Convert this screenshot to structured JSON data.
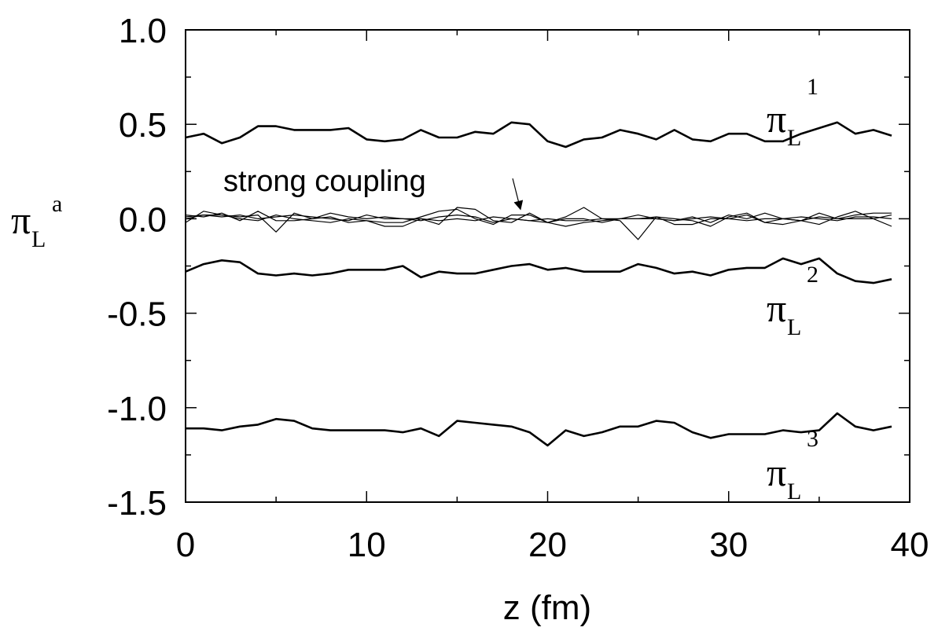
{
  "chart_data": {
    "type": "line",
    "xlabel": "z (fm)",
    "ylabel": {
      "symbol": "π",
      "subscript": "L",
      "superscript": "a"
    },
    "xlim": [
      0,
      40
    ],
    "ylim": [
      -1.5,
      1.0
    ],
    "x_ticks": [
      0,
      10,
      20,
      30,
      40
    ],
    "x_tick_labels": [
      "0",
      "10",
      "20",
      "30",
      "40"
    ],
    "y_ticks": [
      1.0,
      0.5,
      0.0,
      -0.5,
      -1.0,
      -1.5
    ],
    "y_tick_labels": [
      "1.0",
      "0.5",
      "0.0",
      "-0.5",
      "-1.0",
      "-1.5"
    ],
    "grid": false,
    "x": [
      0,
      1,
      2,
      3,
      4,
      5,
      6,
      7,
      8,
      9,
      10,
      11,
      12,
      13,
      14,
      15,
      16,
      17,
      18,
      19,
      20,
      21,
      22,
      23,
      24,
      25,
      26,
      27,
      28,
      29,
      30,
      31,
      32,
      33,
      34,
      35,
      36,
      37,
      38,
      39
    ],
    "series": [
      {
        "name": "π_L^1",
        "label": {
          "symbol": "π",
          "subscript": "L",
          "superscript": "1"
        },
        "style": "thick",
        "values": [
          0.43,
          0.45,
          0.4,
          0.43,
          0.49,
          0.49,
          0.47,
          0.47,
          0.47,
          0.48,
          0.42,
          0.41,
          0.42,
          0.47,
          0.43,
          0.43,
          0.46,
          0.45,
          0.51,
          0.5,
          0.41,
          0.38,
          0.42,
          0.43,
          0.47,
          0.45,
          0.42,
          0.47,
          0.42,
          0.41,
          0.45,
          0.45,
          0.41,
          0.41,
          0.45,
          0.48,
          0.51,
          0.45,
          0.47,
          0.44
        ]
      },
      {
        "name": "π_L^2",
        "label": {
          "symbol": "π",
          "subscript": "L",
          "superscript": "2"
        },
        "style": "thick",
        "values": [
          -0.28,
          -0.24,
          -0.22,
          -0.23,
          -0.29,
          -0.3,
          -0.29,
          -0.3,
          -0.29,
          -0.27,
          -0.27,
          -0.27,
          -0.25,
          -0.31,
          -0.28,
          -0.29,
          -0.29,
          -0.27,
          -0.25,
          -0.24,
          -0.27,
          -0.26,
          -0.28,
          -0.28,
          -0.28,
          -0.24,
          -0.26,
          -0.29,
          -0.28,
          -0.3,
          -0.27,
          -0.26,
          -0.26,
          -0.21,
          -0.24,
          -0.21,
          -0.29,
          -0.33,
          -0.34,
          -0.32
        ]
      },
      {
        "name": "π_L^3",
        "label": {
          "symbol": "π",
          "subscript": "L",
          "superscript": "3"
        },
        "style": "thick",
        "values": [
          -1.11,
          -1.11,
          -1.12,
          -1.1,
          -1.09,
          -1.06,
          -1.07,
          -1.11,
          -1.12,
          -1.12,
          -1.12,
          -1.12,
          -1.13,
          -1.11,
          -1.15,
          -1.07,
          -1.08,
          -1.09,
          -1.1,
          -1.13,
          -1.2,
          -1.12,
          -1.15,
          -1.13,
          -1.1,
          -1.1,
          -1.07,
          -1.08,
          -1.13,
          -1.16,
          -1.14,
          -1.14,
          -1.14,
          -1.12,
          -1.13,
          -1.12,
          -1.03,
          -1.1,
          -1.12,
          -1.1
        ]
      },
      {
        "name": "strong coupling 1",
        "style": "thin",
        "values": [
          -0.02,
          0.04,
          0.02,
          0.0,
          -0.01,
          0.02,
          0.0,
          -0.01,
          -0.02,
          0.0,
          -0.01,
          -0.02,
          -0.02,
          0.01,
          0.04,
          0.05,
          0.0,
          -0.03,
          0.02,
          0.02,
          -0.02,
          0.01,
          0.06,
          0.0,
          -0.01,
          -0.11,
          0.01,
          0.0,
          -0.01,
          -0.04,
          0.01,
          0.03,
          -0.02,
          -0.03,
          -0.01,
          0.03,
          0.0,
          0.02,
          0.03,
          0.03
        ]
      },
      {
        "name": "strong coupling 2",
        "style": "thin",
        "values": [
          0.01,
          0.02,
          0.02,
          0.01,
          0.02,
          -0.07,
          0.03,
          0.0,
          0.01,
          -0.02,
          -0.01,
          -0.04,
          -0.04,
          0.0,
          -0.03,
          0.06,
          0.05,
          -0.01,
          -0.02,
          0.03,
          -0.02,
          -0.04,
          -0.02,
          -0.01,
          0.0,
          0.02,
          0.0,
          -0.01,
          0.01,
          -0.02,
          0.02,
          0.0,
          0.03,
          0.0,
          -0.01,
          -0.03,
          0.01,
          0.04,
          0.0,
          -0.04
        ]
      },
      {
        "name": "strong coupling 3",
        "style": "thin",
        "values": [
          0.02,
          0.01,
          0.03,
          -0.01,
          0.04,
          -0.01,
          -0.01,
          0.0,
          0.03,
          0.01,
          0.0,
          0.01,
          0.0,
          0.0,
          -0.01,
          0.0,
          -0.01,
          0.01,
          0.0,
          -0.01,
          -0.02,
          0.0,
          0.0,
          -0.02,
          0.0,
          0.0,
          0.01,
          -0.03,
          -0.03,
          0.0,
          0.0,
          -0.01,
          0.0,
          0.0,
          0.01,
          0.0,
          -0.01,
          0.01,
          0.01,
          0.0
        ]
      },
      {
        "name": "strong coupling 4",
        "style": "thin",
        "values": [
          0.0,
          0.02,
          0.01,
          0.02,
          0.0,
          0.01,
          0.02,
          0.01,
          0.0,
          -0.01,
          0.02,
          0.0,
          0.0,
          -0.01,
          0.01,
          0.02,
          0.01,
          -0.02,
          0.0,
          -0.01,
          0.0,
          -0.01,
          -0.01,
          0.0,
          0.0,
          0.0,
          0.0,
          -0.01,
          0.0,
          0.01,
          0.0,
          0.02,
          -0.02,
          0.0,
          -0.01,
          0.01,
          0.0,
          0.0,
          0.0,
          0.02
        ]
      }
    ],
    "annotations": [
      {
        "text": "strong coupling",
        "x": 2.0,
        "y": 0.18,
        "arrow_to": {
          "x": 18.5,
          "y": 0.05
        }
      }
    ]
  }
}
